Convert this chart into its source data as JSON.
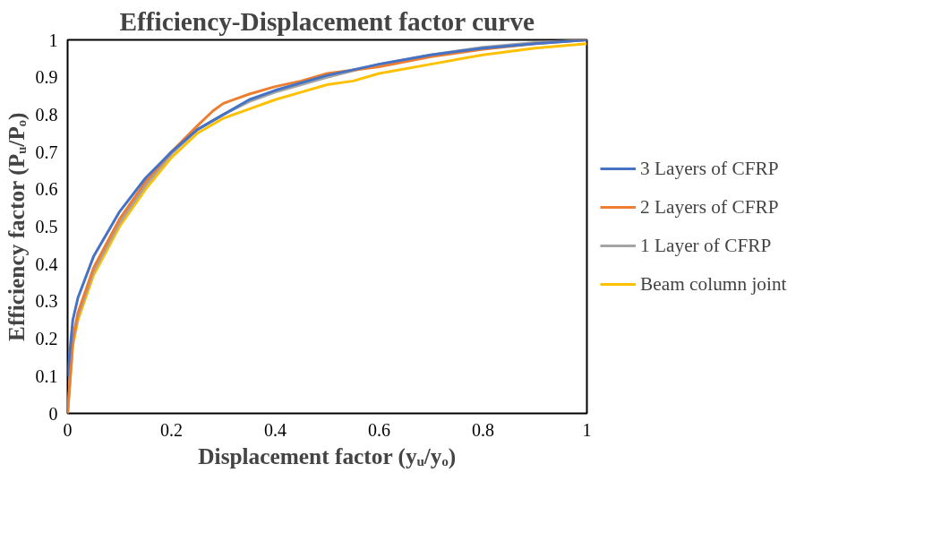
{
  "chart_data": {
    "type": "line",
    "title": "Efficiency-Displacement factor curve",
    "xlabel": "Displacement factor (yᵤ/yₒ)",
    "ylabel": "Efficiency factor (Pᵤ/Pₒ)",
    "xlim": [
      0,
      1
    ],
    "ylim": [
      0,
      1
    ],
    "xticks": [
      0,
      0.2,
      0.4,
      0.6,
      0.8,
      1
    ],
    "yticks": [
      0,
      0.1,
      0.2,
      0.3,
      0.4,
      0.5,
      0.6,
      0.7,
      0.8,
      0.9,
      1
    ],
    "grid": false,
    "legend": "right",
    "marker": "none",
    "line_style": "solid",
    "series": [
      {
        "name": "3 Layers of CFRP",
        "color": "#4472c4",
        "x": [
          0,
          0.01,
          0.02,
          0.05,
          0.1,
          0.15,
          0.2,
          0.25,
          0.3,
          0.35,
          0.4,
          0.5,
          0.6,
          0.7,
          0.8,
          0.9,
          1
        ],
        "values": [
          0.1,
          0.25,
          0.31,
          0.42,
          0.54,
          0.63,
          0.7,
          0.76,
          0.8,
          0.84,
          0.865,
          0.905,
          0.935,
          0.96,
          0.978,
          0.99,
          1.0
        ]
      },
      {
        "name": "2 Layers of CFRP",
        "color": "#ed7d31",
        "x": [
          0,
          0.01,
          0.02,
          0.05,
          0.1,
          0.15,
          0.2,
          0.25,
          0.28,
          0.3,
          0.35,
          0.4,
          0.45,
          0.5,
          0.6,
          0.7,
          0.8,
          0.9,
          1
        ],
        "values": [
          0,
          0.2,
          0.27,
          0.39,
          0.52,
          0.62,
          0.7,
          0.77,
          0.81,
          0.83,
          0.855,
          0.875,
          0.89,
          0.91,
          0.928,
          0.955,
          0.975,
          0.99,
          1.0
        ]
      },
      {
        "name": "1 Layer of CFRP",
        "color": "#a5a5a5",
        "x": [
          0,
          0.01,
          0.02,
          0.05,
          0.1,
          0.15,
          0.2,
          0.25,
          0.3,
          0.35,
          0.4,
          0.5,
          0.6,
          0.7,
          0.8,
          0.9,
          1
        ],
        "values": [
          0,
          0.19,
          0.26,
          0.38,
          0.51,
          0.61,
          0.695,
          0.76,
          0.8,
          0.835,
          0.86,
          0.9,
          0.935,
          0.96,
          0.98,
          0.993,
          1.0
        ]
      },
      {
        "name": "Beam column joint",
        "color": "#ffc000",
        "x": [
          0,
          0.01,
          0.02,
          0.05,
          0.1,
          0.15,
          0.2,
          0.25,
          0.3,
          0.35,
          0.4,
          0.45,
          0.5,
          0.55,
          0.6,
          0.7,
          0.8,
          0.9,
          1
        ],
        "values": [
          0,
          0.18,
          0.25,
          0.37,
          0.5,
          0.6,
          0.685,
          0.75,
          0.79,
          0.815,
          0.84,
          0.86,
          0.88,
          0.89,
          0.91,
          0.935,
          0.96,
          0.978,
          0.99
        ]
      }
    ]
  }
}
